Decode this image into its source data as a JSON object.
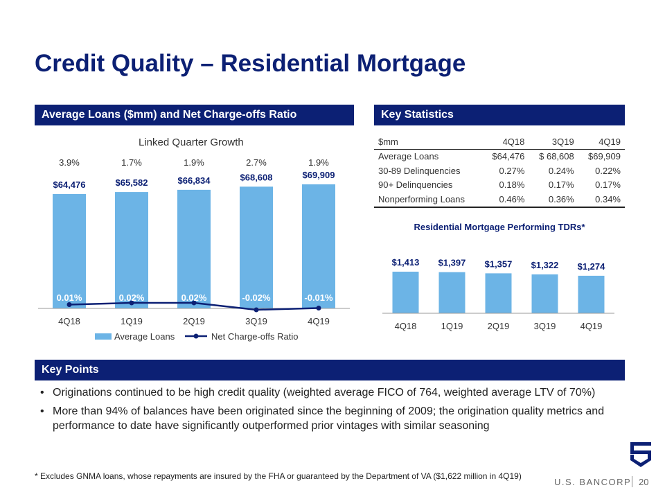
{
  "title": "Credit Quality – Residential Mortgage",
  "left_header": "Average Loans ($mm) and Net Charge-offs Ratio",
  "right_header": "Key Statistics",
  "points_header": "Key Points",
  "left_chart": {
    "type": "bar",
    "subtitle": "Linked Quarter Growth",
    "growth": [
      "3.9%",
      "1.7%",
      "1.9%",
      "2.7%",
      "1.9%"
    ],
    "categories": [
      "4Q18",
      "1Q19",
      "2Q19",
      "3Q19",
      "4Q19"
    ],
    "series": [
      {
        "name": "Average Loans",
        "type": "bar",
        "values": [
          64476,
          65582,
          66834,
          68608,
          69909
        ],
        "labels": [
          "$64,476",
          "$65,582",
          "$66,834",
          "$68,608",
          "$69,909"
        ],
        "color": "#6cb4e6"
      },
      {
        "name": "Net Charge-offs Ratio",
        "type": "line",
        "values": [
          0.01,
          0.02,
          0.02,
          -0.02,
          -0.01
        ],
        "labels": [
          "0.01%",
          "0.02%",
          "0.02%",
          "-0.02%",
          "-0.01%"
        ],
        "color": "#0c2074"
      }
    ],
    "legend": "bottom"
  },
  "stats": {
    "headers": [
      "$mm",
      "4Q18",
      "3Q19",
      "4Q19"
    ],
    "rows": [
      [
        "Average Loans",
        "$64,476",
        "$ 68,608",
        "$69,909"
      ],
      [
        "30-89 Delinquencies",
        "0.27%",
        "0.24%",
        "0.22%"
      ],
      [
        "90+ Delinquencies",
        "0.18%",
        "0.17%",
        "0.17%"
      ],
      [
        "Nonperforming Loans",
        "0.46%",
        "0.36%",
        "0.34%"
      ]
    ]
  },
  "right_chart": {
    "type": "bar",
    "title": "Residential Mortgage Performing TDRs*",
    "categories": [
      "4Q18",
      "1Q19",
      "2Q19",
      "3Q19",
      "4Q19"
    ],
    "values": [
      1413,
      1397,
      1357,
      1322,
      1274
    ],
    "labels": [
      "$1,413",
      "$1,397",
      "$1,357",
      "$1,322",
      "$1,274"
    ],
    "color": "#6cb4e6"
  },
  "chart_data": [
    {
      "type": "bar",
      "subtitle": "Linked Quarter Growth",
      "categories": [
        "4Q18",
        "1Q19",
        "2Q19",
        "3Q19",
        "4Q19"
      ],
      "series": [
        {
          "name": "Average Loans",
          "values": [
            64476,
            65582,
            66834,
            68608,
            69909
          ]
        },
        {
          "name": "Net Charge-offs Ratio",
          "values": [
            0.01,
            0.02,
            0.02,
            -0.02,
            -0.01
          ]
        }
      ],
      "annotations": [
        "3.9%",
        "1.7%",
        "1.9%",
        "2.7%",
        "1.9%"
      ],
      "legend": "bottom"
    },
    {
      "type": "bar",
      "title": "Residential Mortgage Performing TDRs*",
      "categories": [
        "4Q18",
        "1Q19",
        "2Q19",
        "3Q19",
        "4Q19"
      ],
      "values": [
        1413,
        1397,
        1357,
        1322,
        1274
      ]
    }
  ],
  "key_points": [
    "Originations continued to be high credit quality (weighted average FICO of 764, weighted average LTV of 70%)",
    "More than 94% of balances have been originated since the beginning of 2009; the origination quality metrics and performance to date have significantly outperformed prior vintages with similar seasoning"
  ],
  "bullet": "•",
  "footnote": "* Excludes GNMA loans, whose repayments are insured by the FHA or guaranteed by the Department of VA ($1,622 million in 4Q19)",
  "brand": "U.S. BANCORP",
  "page_number": "20",
  "logo_icon": "usbank-shield-icon"
}
